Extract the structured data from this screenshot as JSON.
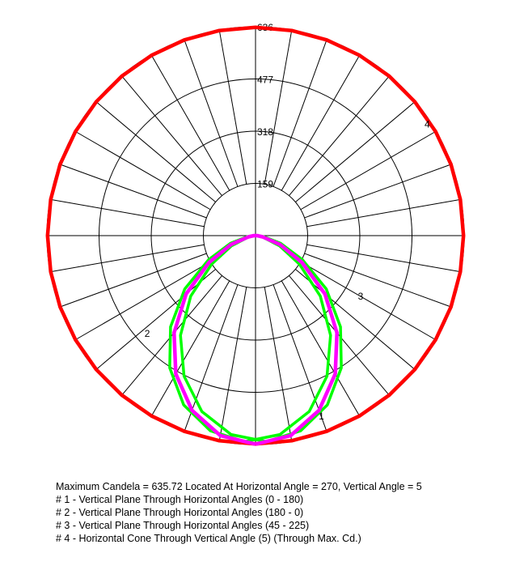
{
  "chart_data": {
    "type": "polar-photometric",
    "max_value": 636,
    "ring_values": [
      159,
      318,
      477,
      636
    ],
    "ring_labels": [
      "159",
      "318",
      "477",
      "636"
    ],
    "angle_step_deg": 10,
    "units": "cd",
    "curves": [
      {
        "id": "1",
        "color": "#00ff00",
        "label": "1",
        "angles_deg": [
          0,
          10,
          20,
          30,
          40,
          50,
          60,
          70,
          80,
          90
        ],
        "values": [
          628,
          610,
          560,
          480,
          380,
          270,
          160,
          80,
          25,
          5
        ]
      },
      {
        "id": "2",
        "color": "#00ff00",
        "label": "2",
        "angles_deg": [
          0,
          10,
          20,
          30,
          40,
          50,
          60,
          70,
          80,
          90
        ],
        "values": [
          628,
          610,
          560,
          480,
          380,
          270,
          160,
          80,
          25,
          5
        ]
      },
      {
        "id": "3",
        "color": "#ff00ff",
        "label": "3",
        "angles_deg": [
          0,
          10,
          20,
          30,
          40,
          50,
          60,
          70,
          80,
          90
        ],
        "values": [
          635,
          618,
          566,
          486,
          386,
          276,
          164,
          80,
          22,
          5
        ]
      },
      {
        "id": "4",
        "color": "#ff0000",
        "label": "4",
        "description": "horizontal cone at vertical angle 5",
        "values_constant": 634
      }
    ]
  },
  "legend": {
    "max_line": "Maximum Candela = 635.72   Located At Horizontal Angle = 270, Vertical Angle = 5",
    "line1": "# 1 - Vertical Plane Through Horizontal Angles (0 - 180)",
    "line2": "# 2 - Vertical Plane Through Horizontal Angles (180 - 0)",
    "line3": "# 3 - Vertical Plane Through Horizontal Angles (45 - 225)",
    "line4": "# 4 - Horizontal Cone Through Vertical Angle (5) (Through Max. Cd.)"
  }
}
